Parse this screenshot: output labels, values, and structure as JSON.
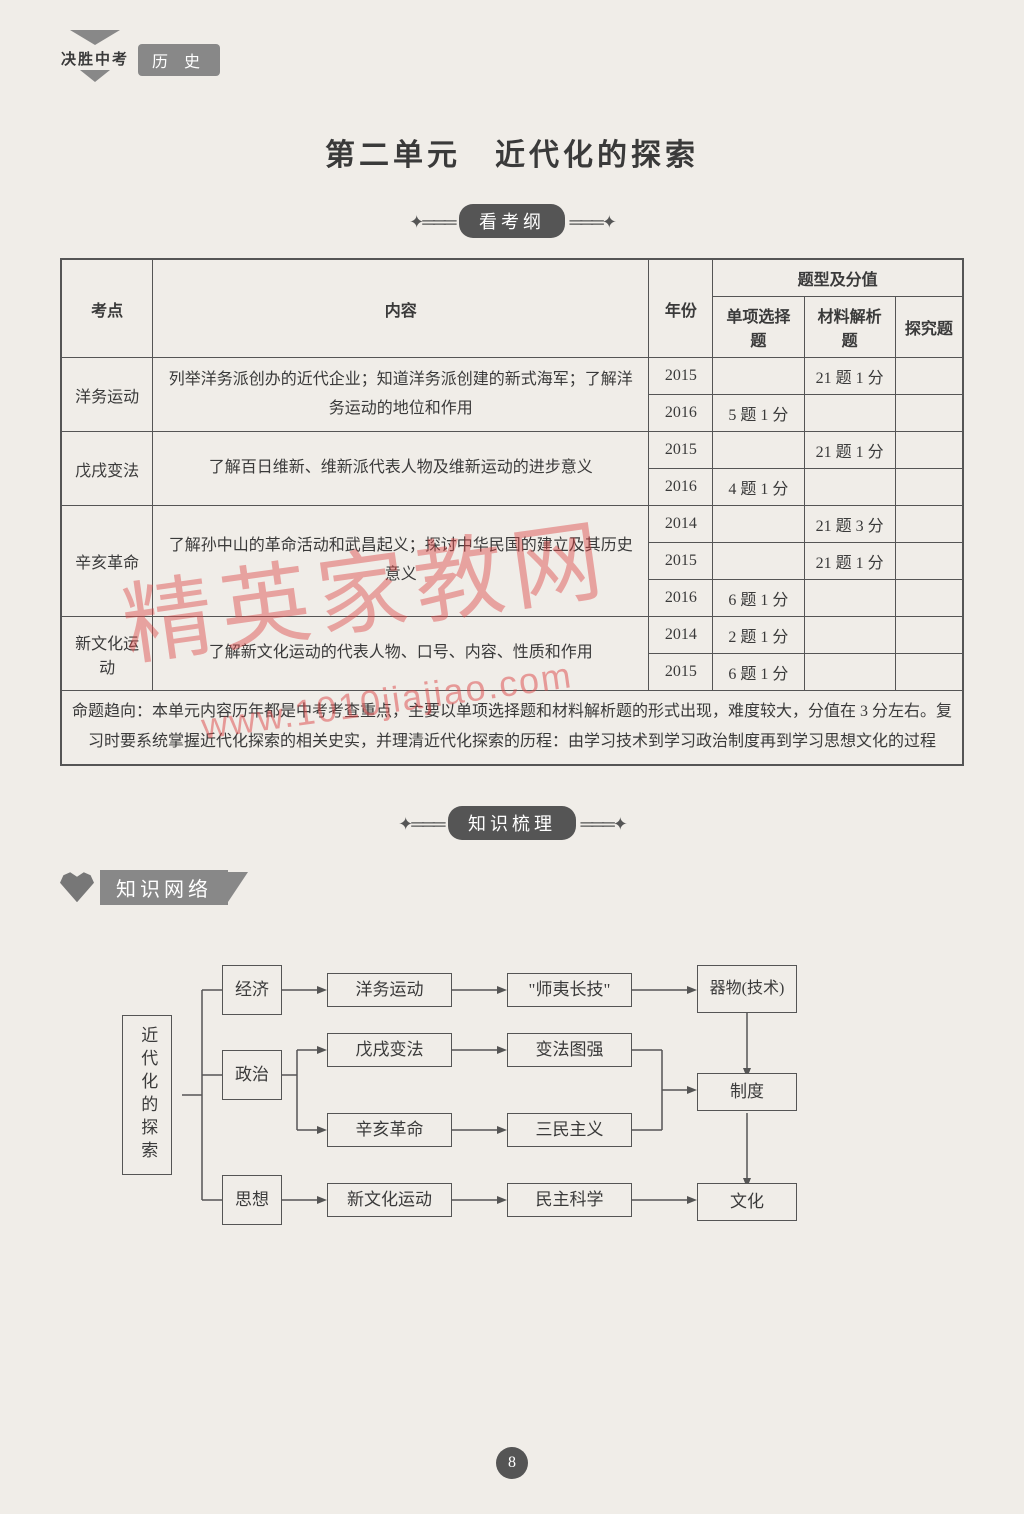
{
  "header": {
    "logo_text": "决胜中考",
    "subject": "历 史"
  },
  "unit_title": "第二单元　近代化的探索",
  "badges": {
    "syllabus": "看考纲",
    "knowledge": "知识梳理"
  },
  "section_label": "知识网络",
  "table": {
    "head": {
      "c1": "考点",
      "c2": "内容",
      "c3": "年份",
      "c4": "题型及分值",
      "c4a": "单项选择题",
      "c4b": "材料解析题",
      "c4c": "探究题"
    },
    "rows": [
      {
        "topic": "洋务运动",
        "content": "列举洋务派创办的近代企业；知道洋务派创建的新式海军；了解洋务运动的地位和作用",
        "years": [
          {
            "y": "2015",
            "mc": "",
            "mat": "21 题 1 分",
            "inq": ""
          },
          {
            "y": "2016",
            "mc": "5 题 1 分",
            "mat": "",
            "inq": ""
          }
        ]
      },
      {
        "topic": "戊戌变法",
        "content": "了解百日维新、维新派代表人物及维新运动的进步意义",
        "years": [
          {
            "y": "2015",
            "mc": "",
            "mat": "21 题 1 分",
            "inq": ""
          },
          {
            "y": "2016",
            "mc": "4 题 1 分",
            "mat": "",
            "inq": ""
          }
        ]
      },
      {
        "topic": "辛亥革命",
        "content": "了解孙中山的革命活动和武昌起义；探讨中华民国的建立及其历史意义",
        "years": [
          {
            "y": "2014",
            "mc": "",
            "mat": "21 题 3 分",
            "inq": ""
          },
          {
            "y": "2015",
            "mc": "",
            "mat": "21 题 1 分",
            "inq": ""
          },
          {
            "y": "2016",
            "mc": "6 题 1 分",
            "mat": "",
            "inq": ""
          }
        ]
      },
      {
        "topic": "新文化运动",
        "content": "了解新文化运动的代表人物、口号、内容、性质和作用",
        "years": [
          {
            "y": "2014",
            "mc": "2 题 1 分",
            "mat": "",
            "inq": ""
          },
          {
            "y": "2015",
            "mc": "6 题 1 分",
            "mat": "",
            "inq": ""
          }
        ]
      }
    ],
    "trend": "命题趋向：本单元内容历年都是中考考查重点，主要以单项选择题和材料解析题的形式出现，难度较大，分值在 3 分左右。复习时要系统掌握近代化探索的相关史实，并理清近代化探索的历程：由学习技术到学习政治制度再到学习思想文化的过程"
  },
  "flowchart": {
    "root": "近代化的探索",
    "col2": [
      "经济",
      "政治",
      "思想"
    ],
    "col3": [
      "洋务运动",
      "戊戌变法",
      "辛亥革命",
      "新文化运动"
    ],
    "col4": [
      "\"师夷长技\"",
      "变法图强",
      "三民主义",
      "民主科学"
    ],
    "col5": [
      "器物(技术)",
      "制度",
      "文化"
    ]
  },
  "page_number": "8",
  "watermark_main": "精英家教网",
  "watermark_url": "www.1010jiajiao.com",
  "styles": {
    "page_bg": "#f0ede8",
    "border_color": "#555555",
    "badge_bg": "#555555",
    "tab_bg": "#888888",
    "watermark_color": "rgba(220,70,70,0.45)",
    "body_font_size": 16,
    "title_font_size": 30
  }
}
